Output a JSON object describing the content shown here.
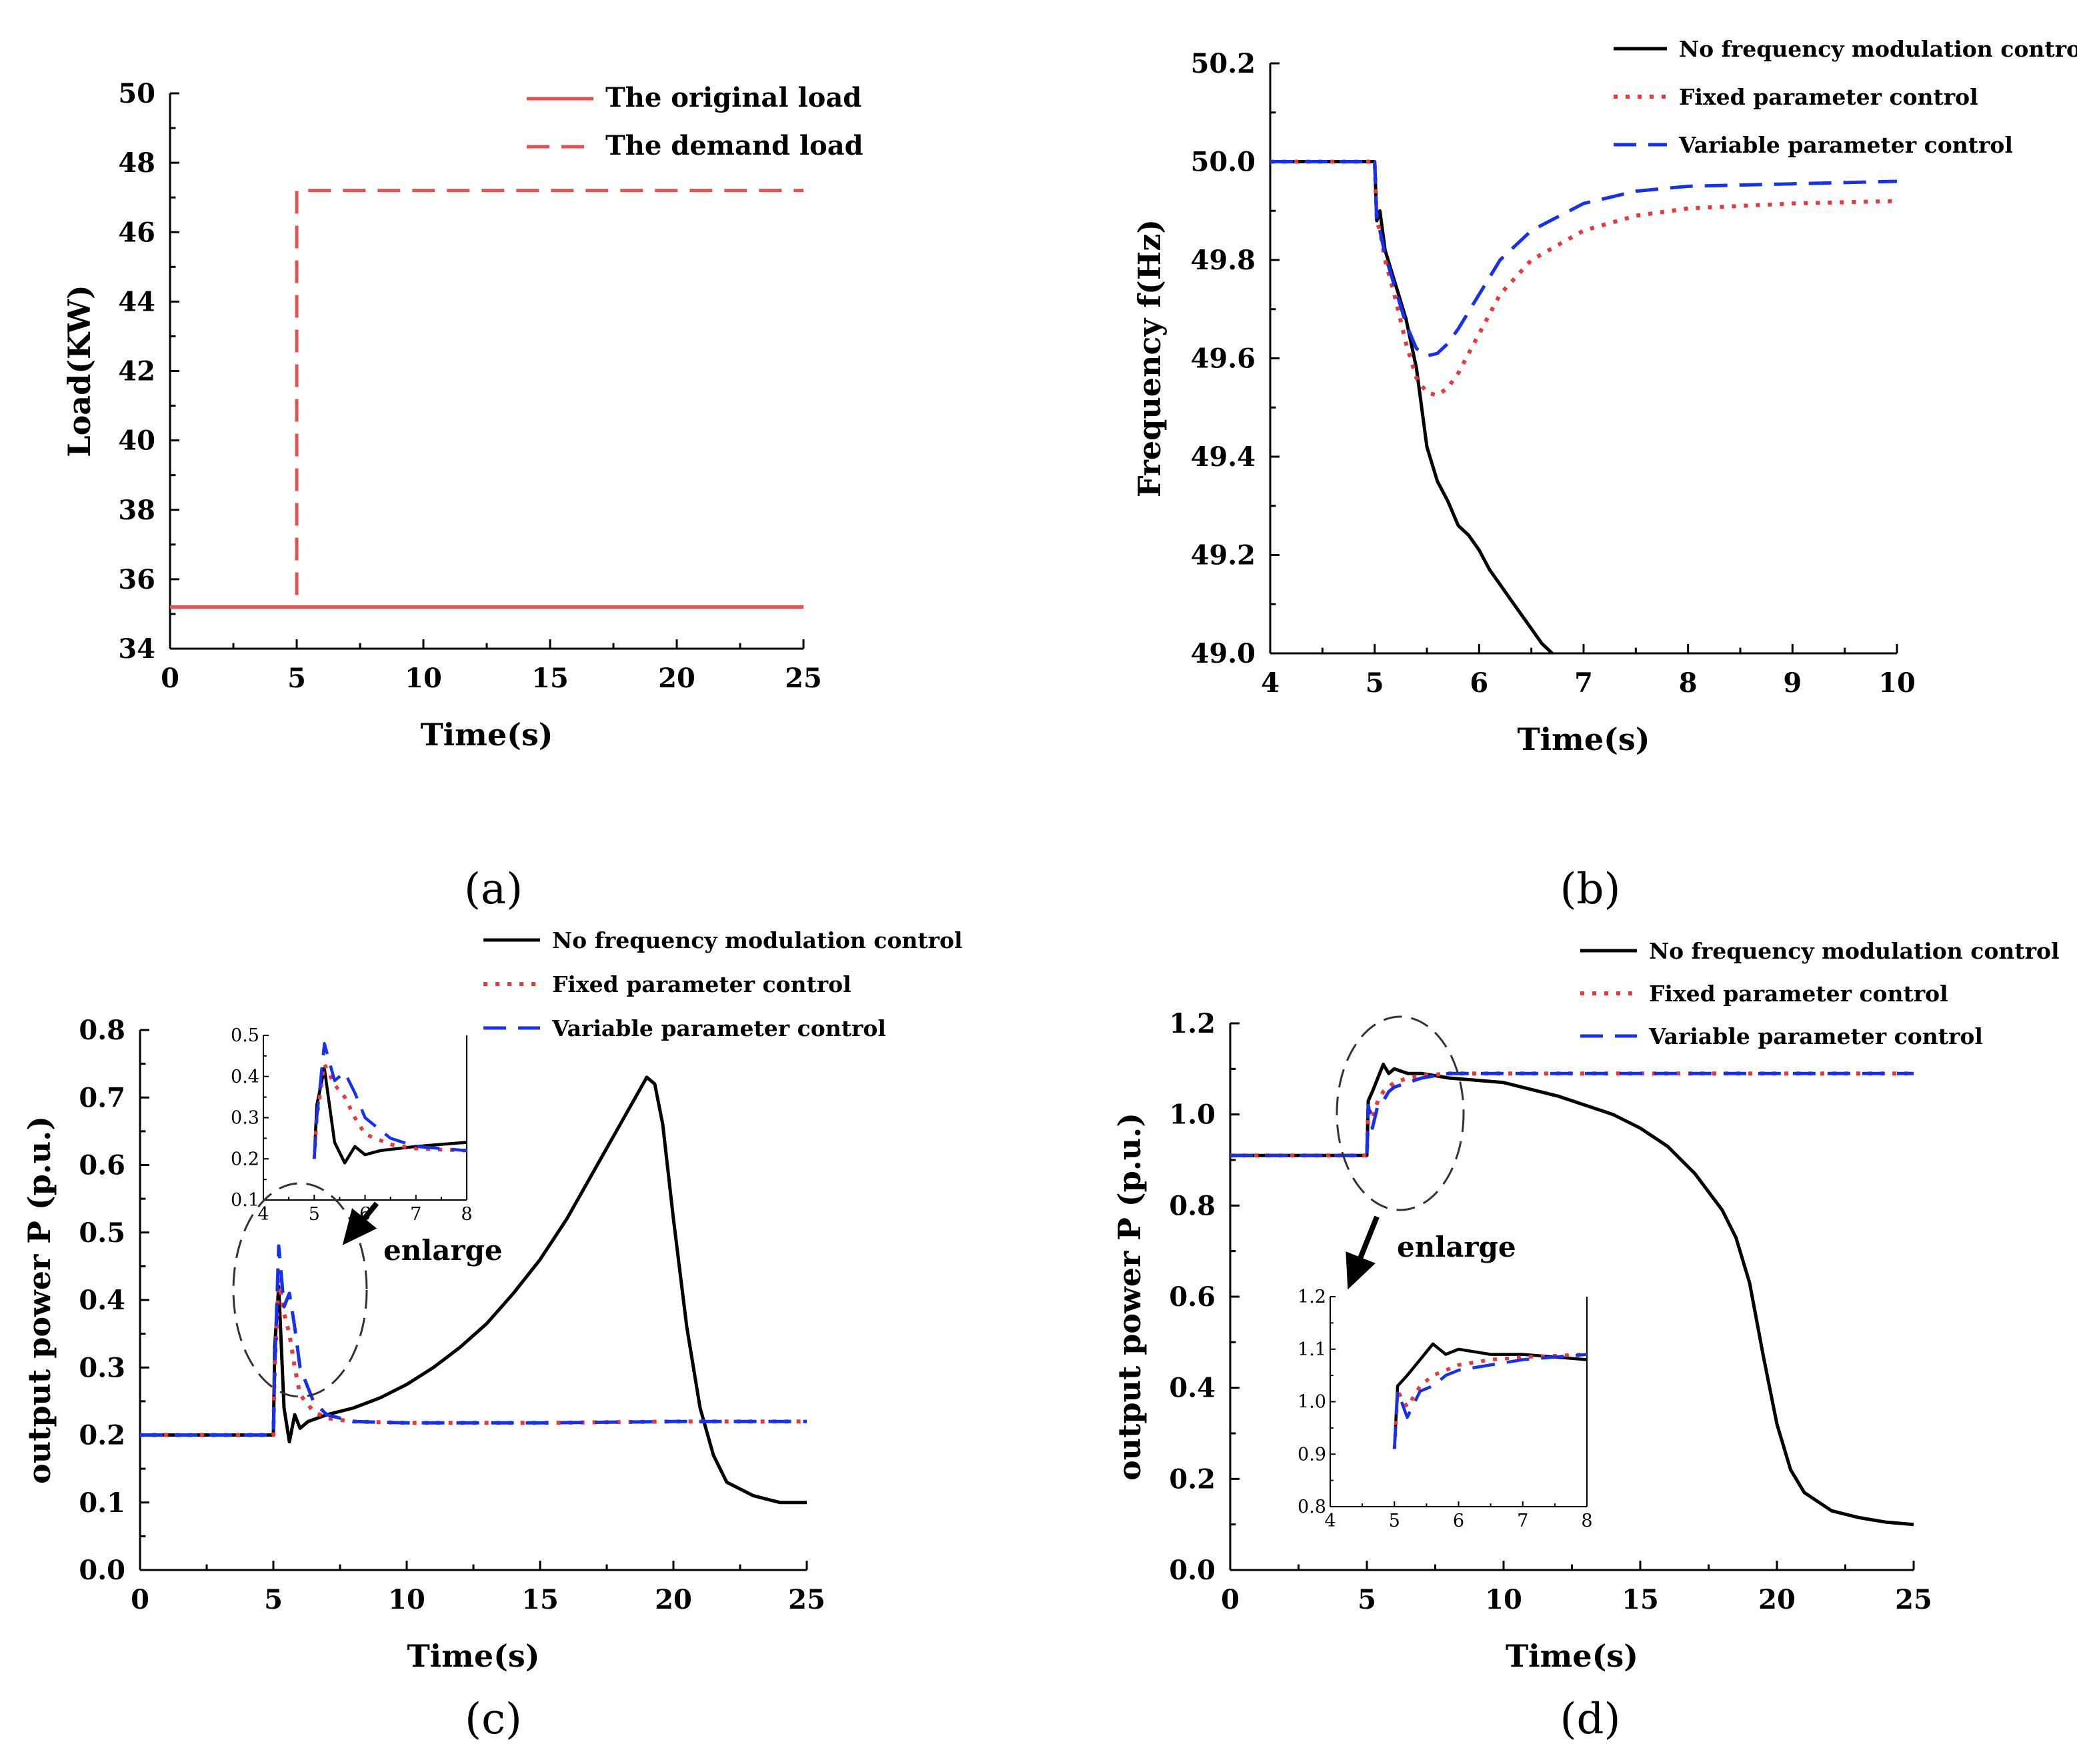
{
  "colors": {
    "black": "#000000",
    "red": "#e8383c",
    "blue": "#1530f0",
    "red_solid": "#e85050"
  },
  "chart_data": [
    {
      "id": "a",
      "type": "line",
      "caption": "(a)",
      "xlabel": "Time(s)",
      "ylabel": "Load(KW)",
      "xlim": [
        0,
        25
      ],
      "ylim": [
        34,
        50
      ],
      "xticks": [
        0,
        5,
        10,
        15,
        20,
        25
      ],
      "yticks": [
        34,
        36,
        38,
        40,
        42,
        44,
        46,
        48,
        50
      ],
      "legend_position": "top-right",
      "series": [
        {
          "name": "The original load",
          "style": "solid",
          "color": "#e85050",
          "x": [
            0,
            25
          ],
          "y": [
            35.2,
            35.2
          ]
        },
        {
          "name": "The demand load",
          "style": "dashed",
          "color": "#e85050",
          "x": [
            0,
            5,
            5,
            25
          ],
          "y": [
            35.2,
            35.2,
            47.2,
            47.2
          ]
        }
      ]
    },
    {
      "id": "b",
      "type": "line",
      "caption": "(b)",
      "xlabel": "Time(s)",
      "ylabel": "Frequency f(Hz)",
      "xlim": [
        4,
        10
      ],
      "ylim": [
        49.0,
        50.2
      ],
      "xticks": [
        4,
        5,
        6,
        7,
        8,
        9,
        10
      ],
      "yticks": [
        49.0,
        49.2,
        49.4,
        49.6,
        49.8,
        50.0,
        50.2
      ],
      "ytick_labels": [
        "49.0",
        "49.2",
        "49.4",
        "49.6",
        "49.8",
        "50.0",
        "50.2"
      ],
      "legend_position": "top-right",
      "series": [
        {
          "name": "No frequency modulation control",
          "style": "solid",
          "color": "#000000",
          "x": [
            4,
            5,
            5.02,
            5.05,
            5.1,
            5.2,
            5.3,
            5.4,
            5.5,
            5.6,
            5.7,
            5.8,
            5.9,
            6.0,
            6.1,
            6.2,
            6.3,
            6.5,
            6.6,
            6.75
          ],
          "y": [
            50.0,
            50.0,
            49.88,
            49.9,
            49.82,
            49.75,
            49.68,
            49.58,
            49.42,
            49.35,
            49.31,
            49.26,
            49.24,
            49.21,
            49.17,
            49.14,
            49.11,
            49.05,
            49.02,
            48.99
          ]
        },
        {
          "name": "Fixed parameter control",
          "style": "dotted",
          "color": "#e8383c",
          "x": [
            4,
            5,
            5.02,
            5.05,
            5.1,
            5.2,
            5.3,
            5.4,
            5.5,
            5.6,
            5.7,
            5.8,
            6.0,
            6.2,
            6.5,
            7.0,
            7.5,
            8.0,
            9.0,
            10.0
          ],
          "y": [
            50.0,
            50.0,
            49.88,
            49.86,
            49.8,
            49.72,
            49.63,
            49.56,
            49.53,
            49.525,
            49.54,
            49.57,
            49.65,
            49.73,
            49.8,
            49.86,
            49.89,
            49.905,
            49.915,
            49.92
          ]
        },
        {
          "name": "Variable parameter control",
          "style": "dashed",
          "color": "#1530f0",
          "x": [
            4,
            5,
            5.02,
            5.05,
            5.1,
            5.2,
            5.3,
            5.4,
            5.5,
            5.6,
            5.7,
            5.8,
            6.0,
            6.2,
            6.5,
            7.0,
            7.5,
            8.0,
            9.0,
            10.0
          ],
          "y": [
            50.0,
            50.0,
            49.88,
            49.86,
            49.81,
            49.74,
            49.67,
            49.62,
            49.605,
            49.61,
            49.63,
            49.66,
            49.73,
            49.8,
            49.86,
            49.915,
            49.94,
            49.95,
            49.955,
            49.96
          ]
        }
      ]
    },
    {
      "id": "c",
      "type": "line",
      "caption": "(c)",
      "xlabel": "Time(s)",
      "ylabel": "output power  P  (p.u.)",
      "xlim": [
        0,
        25
      ],
      "ylim": [
        0.0,
        0.8
      ],
      "xticks": [
        0,
        5,
        10,
        15,
        20,
        25
      ],
      "yticks": [
        0.0,
        0.1,
        0.2,
        0.3,
        0.4,
        0.5,
        0.6,
        0.7,
        0.8
      ],
      "ytick_labels": [
        "0.0",
        "0.1",
        "0.2",
        "0.3",
        "0.4",
        "0.5",
        "0.6",
        "0.7",
        "0.8"
      ],
      "legend_position": "top",
      "annotation": "enlarge",
      "series": [
        {
          "name": "No frequency modulation control",
          "style": "solid",
          "color": "#000000",
          "x": [
            0,
            5,
            5.05,
            5.2,
            5.4,
            5.6,
            5.8,
            6.0,
            6.3,
            7.0,
            8.0,
            9.0,
            10.0,
            11.0,
            12.0,
            13.0,
            14.0,
            15.0,
            16.0,
            17.0,
            18.0,
            19.0,
            19.3,
            19.6,
            20.0,
            20.5,
            21.0,
            21.5,
            22.0,
            23.0,
            24.0,
            25.0
          ],
          "y": [
            0.2,
            0.2,
            0.33,
            0.42,
            0.24,
            0.19,
            0.23,
            0.21,
            0.22,
            0.23,
            0.24,
            0.255,
            0.275,
            0.3,
            0.33,
            0.365,
            0.41,
            0.46,
            0.52,
            0.59,
            0.66,
            0.73,
            0.72,
            0.66,
            0.52,
            0.36,
            0.24,
            0.17,
            0.13,
            0.11,
            0.1,
            0.1
          ]
        },
        {
          "name": "Fixed parameter control",
          "style": "dotted",
          "color": "#e8383c",
          "x": [
            0,
            5,
            5.05,
            5.2,
            5.4,
            5.6,
            5.8,
            6.0,
            6.5,
            7.0,
            8.0,
            10.0,
            15.0,
            20.0,
            25.0
          ],
          "y": [
            0.2,
            0.2,
            0.3,
            0.43,
            0.38,
            0.35,
            0.3,
            0.26,
            0.235,
            0.225,
            0.22,
            0.218,
            0.218,
            0.22,
            0.22
          ]
        },
        {
          "name": "Variable parameter control",
          "style": "dashed",
          "color": "#1530f0",
          "x": [
            0,
            5,
            5.05,
            5.2,
            5.4,
            5.6,
            5.8,
            6.0,
            6.5,
            7.0,
            8.0,
            10.0,
            15.0,
            20.0,
            25.0
          ],
          "y": [
            0.2,
            0.2,
            0.3,
            0.48,
            0.39,
            0.41,
            0.36,
            0.3,
            0.25,
            0.23,
            0.22,
            0.218,
            0.218,
            0.22,
            0.22
          ]
        }
      ],
      "inset": {
        "xlim": [
          4,
          8
        ],
        "ylim": [
          0.1,
          0.5
        ],
        "xticks": [
          4,
          5,
          6,
          7,
          8
        ],
        "yticks": [
          0.1,
          0.2,
          0.3,
          0.4,
          0.5
        ],
        "ytick_labels": [
          "0.1",
          "0.2",
          "0.3",
          "0.4",
          "0.5"
        ]
      }
    },
    {
      "id": "d",
      "type": "line",
      "caption": "(d)",
      "xlabel": "Time(s)",
      "ylabel": "output power  P  (p.u.)",
      "xlim": [
        0,
        25
      ],
      "ylim": [
        0.0,
        1.2
      ],
      "xticks": [
        0,
        5,
        10,
        15,
        20,
        25
      ],
      "yticks": [
        0.0,
        0.2,
        0.4,
        0.6,
        0.8,
        1.0,
        1.2
      ],
      "ytick_labels": [
        "0.0",
        "0.2",
        "0.4",
        "0.6",
        "0.8",
        "1.0",
        "1.2"
      ],
      "legend_position": "top-right",
      "annotation": "enlarge",
      "series": [
        {
          "name": "No frequency modulation control",
          "style": "solid",
          "color": "#000000",
          "x": [
            0,
            5,
            5.05,
            5.2,
            5.4,
            5.6,
            5.8,
            6.0,
            6.5,
            7.0,
            8.0,
            10.0,
            12.0,
            14.0,
            15.0,
            16.0,
            17.0,
            18.0,
            18.5,
            19.0,
            19.5,
            20.0,
            20.5,
            21.0,
            22.0,
            23.0,
            24.0,
            25.0
          ],
          "y": [
            0.91,
            0.91,
            1.03,
            1.05,
            1.08,
            1.11,
            1.09,
            1.1,
            1.09,
            1.09,
            1.08,
            1.07,
            1.04,
            1.0,
            0.97,
            0.93,
            0.87,
            0.79,
            0.73,
            0.63,
            0.47,
            0.32,
            0.22,
            0.17,
            0.13,
            0.115,
            0.105,
            0.1
          ]
        },
        {
          "name": "Fixed parameter control",
          "style": "dotted",
          "color": "#e8383c",
          "x": [
            0,
            5,
            5.05,
            5.2,
            5.4,
            5.6,
            5.8,
            6.0,
            6.5,
            7.0,
            8.0,
            10.0,
            15.0,
            20.0,
            25.0
          ],
          "y": [
            0.91,
            0.91,
            1.02,
            0.99,
            1.03,
            1.05,
            1.06,
            1.07,
            1.08,
            1.085,
            1.09,
            1.09,
            1.09,
            1.09,
            1.09
          ]
        },
        {
          "name": "Variable parameter control",
          "style": "dashed",
          "color": "#1530f0",
          "x": [
            0,
            5,
            5.05,
            5.2,
            5.4,
            5.6,
            5.8,
            6.0,
            6.5,
            7.0,
            8.0,
            10.0,
            15.0,
            20.0,
            25.0
          ],
          "y": [
            0.91,
            0.91,
            1.02,
            0.97,
            1.02,
            1.03,
            1.05,
            1.06,
            1.07,
            1.08,
            1.09,
            1.09,
            1.09,
            1.09,
            1.09
          ]
        }
      ],
      "inset": {
        "xlim": [
          4,
          8
        ],
        "ylim": [
          0.8,
          1.2
        ],
        "xticks": [
          4,
          5,
          6,
          7,
          8
        ],
        "yticks": [
          0.8,
          0.9,
          1.0,
          1.1,
          1.2
        ],
        "ytick_labels": [
          "0.8",
          "0.9",
          "1.0",
          "1.1",
          "1.2"
        ]
      }
    }
  ]
}
